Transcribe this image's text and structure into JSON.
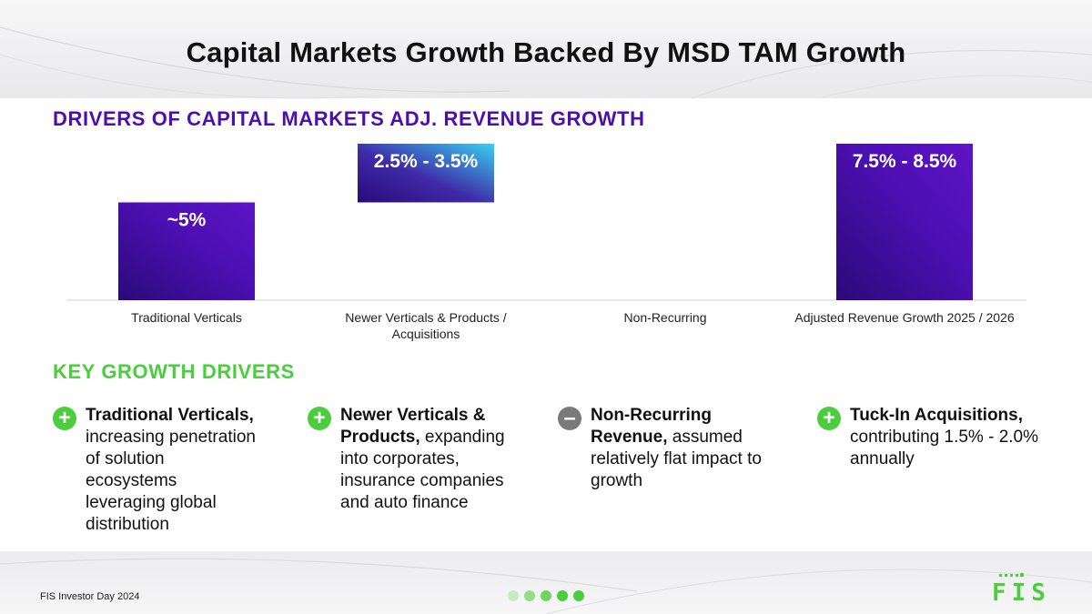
{
  "slide": {
    "title": "Capital Markets Growth Backed By MSD TAM Growth",
    "footer": "FIS Investor Day 2024",
    "logo_text": "FIS"
  },
  "colors": {
    "accent_purple": "#4b0fb0",
    "accent_green": "#4bcd3e",
    "bar_cyan": "#3ad0f0",
    "minus_gray": "#7a7a7a",
    "dot_pale": "#c8ecc2",
    "dot_light": "#93df88",
    "dot_mid": "#6dd65f",
    "dot_strong": "#4bcd3e"
  },
  "chart_section": {
    "heading": "DRIVERS OF CAPITAL MARKETS ADJ. REVENUE GROWTH"
  },
  "chart_data": {
    "type": "bar",
    "subtype": "waterfall",
    "title": "DRIVERS OF CAPITAL MARKETS ADJ. REVENUE GROWTH",
    "categories": [
      "Traditional Verticals",
      "Newer Verticals & Products / Acquisitions",
      "Non-Recurring",
      "Adjusted Revenue Growth 2025 / 2026"
    ],
    "values": [
      5.0,
      3.0,
      0.0,
      8.0
    ],
    "bases": [
      0,
      5.0,
      8.0,
      0
    ],
    "data_labels": [
      "~5%",
      "2.5% - 3.5%",
      "",
      "7.5% - 8.5%"
    ],
    "ylim": [
      0,
      8.0
    ],
    "grid": false,
    "legend": "none",
    "xlabel": "",
    "ylabel": ""
  },
  "drivers_section": {
    "heading": "KEY GROWTH DRIVERS",
    "items": [
      {
        "sign": "+",
        "icon": "plus-icon",
        "bold": "Traditional Verticals,",
        "rest": " increasing penetration of solution ecosystems leveraging global distribution"
      },
      {
        "sign": "+",
        "icon": "plus-icon",
        "bold": "Newer Verticals & Products,",
        "rest": " expanding into corporates, insurance companies and auto finance"
      },
      {
        "sign": "–",
        "icon": "minus-icon",
        "bold": "Non-Recurring Revenue,",
        "rest": " assumed relatively flat impact to growth"
      },
      {
        "sign": "+",
        "icon": "plus-icon",
        "bold": "Tuck-In Acquisitions,",
        "rest": " contributing 1.5% - 2.0% annually"
      }
    ]
  }
}
